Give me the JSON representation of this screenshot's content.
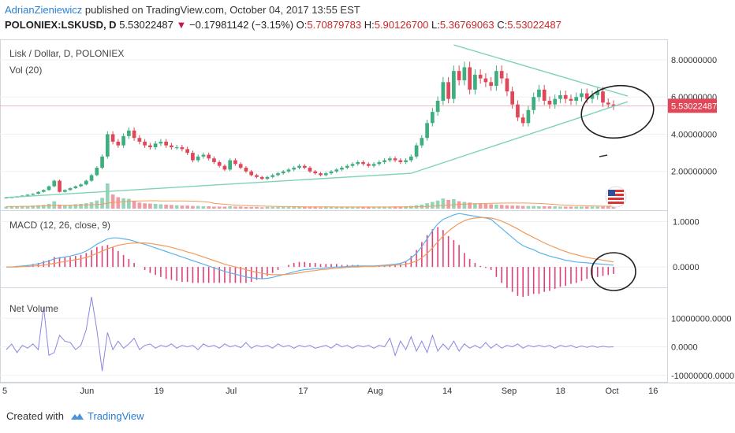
{
  "header": {
    "author": "AdrianZieniewicz",
    "published_text": " published on TradingView.com, October 04, 2017 13:55 EST"
  },
  "quote": {
    "symbol": "POLONIEX:LSKUSD, D",
    "last": "5.53022487",
    "arrow": "▼",
    "change": "−0.17981142 (−3.15%)",
    "o_label": "O:",
    "o": "5.70879783",
    "h_label": "H:",
    "h": "5.90126700",
    "l_label": "L:",
    "l": "5.36769063",
    "c_label": "C:",
    "c": "5.53022487"
  },
  "panes": {
    "price_title": "Lisk / Dollar, D, POLONIEX",
    "vol_title": "Vol (20)",
    "macd_title": "MACD (12, 26, close, 9)",
    "netvol_title": "Net Volume"
  },
  "footer": {
    "created_with": "Created with",
    "brand": "TradingView"
  },
  "colors": {
    "up": "#3fae7f",
    "down": "#e0485a",
    "macd_line": "#5ab4ea",
    "signal_line": "#f29a5a",
    "histogram": "#e0407a",
    "net_volume": "#8a86e0",
    "trendline": "#7fd3b5",
    "price_label_bg": "#e0485a"
  },
  "chart_data": [
    {
      "type": "candlestick",
      "name": "Lisk / Dollar, D, POLONIEX",
      "price_axis_ticks": [
        "8.00000000",
        "6.00000000",
        "4.00000000",
        "2.00000000"
      ],
      "y_ticks": [
        8,
        6,
        4,
        2
      ],
      "ylim": [
        0,
        9.1
      ],
      "last_price_label": "5.53022487",
      "last_price": 5.53,
      "x_ticks": [
        "5",
        "Jun",
        "19",
        "Jul",
        "17",
        "Aug",
        "14",
        "Sep",
        "18",
        "Oct",
        "16"
      ],
      "close": [
        0.6,
        0.62,
        0.65,
        0.7,
        0.75,
        0.8,
        0.9,
        1.0,
        1.2,
        1.5,
        0.9,
        1.0,
        1.1,
        1.2,
        1.3,
        1.5,
        1.8,
        2.2,
        2.8,
        4.0,
        3.6,
        3.4,
        3.9,
        4.2,
        3.8,
        3.6,
        3.4,
        3.3,
        3.5,
        3.6,
        3.4,
        3.3,
        3.3,
        3.2,
        3.0,
        2.6,
        2.8,
        2.9,
        2.7,
        2.5,
        2.3,
        2.1,
        2.6,
        2.4,
        2.2,
        2.0,
        1.8,
        1.7,
        1.6,
        1.7,
        1.8,
        1.9,
        2.0,
        2.1,
        2.2,
        2.3,
        2.2,
        2.0,
        1.9,
        1.8,
        1.9,
        2.0,
        2.1,
        2.2,
        2.3,
        2.4,
        2.5,
        2.4,
        2.3,
        2.4,
        2.5,
        2.6,
        2.7,
        2.6,
        2.5,
        2.6,
        2.8,
        3.4,
        3.8,
        4.6,
        5.2,
        5.8,
        6.8,
        5.9,
        7.4,
        6.9,
        7.6,
        6.4,
        7.2,
        7.0,
        6.8,
        6.6,
        7.4,
        7.0,
        6.3,
        5.6,
        4.9,
        4.6,
        5.3,
        6.0,
        6.4,
        5.8,
        5.6,
        5.9,
        6.1,
        5.9,
        5.8,
        6.0,
        6.2,
        5.9,
        6.1,
        6.3,
        5.7,
        5.6,
        5.53
      ],
      "volume": [
        0.6,
        0.7,
        0.6,
        0.8,
        0.7,
        0.9,
        1,
        1.1,
        1.4,
        2.2,
        1.2,
        1,
        1.1,
        1.3,
        1.4,
        1.6,
        1.9,
        2.4,
        3.2,
        7.5,
        4.2,
        3.4,
        3.1,
        2.9,
        2.2,
        1.8,
        1.6,
        1.5,
        1.4,
        1.3,
        1.2,
        1.1,
        1,
        0.9,
        0.9,
        0.8,
        0.8,
        0.7,
        0.7,
        0.6,
        0.6,
        0.6,
        0.7,
        0.6,
        0.6,
        0.5,
        0.5,
        0.5,
        0.4,
        0.5,
        0.5,
        0.5,
        0.5,
        0.5,
        0.5,
        0.5,
        0.5,
        0.5,
        0.5,
        0.4,
        0.5,
        0.5,
        0.5,
        0.5,
        0.5,
        0.5,
        0.5,
        0.5,
        0.5,
        0.5,
        0.5,
        0.5,
        0.6,
        0.6,
        0.6,
        0.7,
        0.8,
        1.0,
        1.2,
        1.6,
        2.0,
        2.4,
        3.0,
        2.6,
        2.8,
        2.2,
        2.0,
        1.8,
        1.6,
        1.5,
        1.4,
        1.3,
        1.2,
        1.1,
        1.0,
        0.9,
        0.9,
        0.8,
        0.8,
        0.8,
        0.7,
        0.7,
        0.7,
        0.7,
        0.6,
        0.6,
        0.6,
        0.6,
        0.6,
        0.6,
        0.6,
        0.6,
        0.6,
        0.6,
        0.6
      ]
    },
    {
      "type": "line",
      "name": "MACD (12, 26, close, 9)",
      "y_ticks": [
        1.0,
        0.0
      ],
      "y_tick_labels": [
        "1.0000",
        "0.0000"
      ],
      "ylim": [
        -0.45,
        1.2
      ],
      "macd": [
        0.0,
        0.0,
        0.01,
        0.02,
        0.03,
        0.05,
        0.07,
        0.1,
        0.13,
        0.18,
        0.2,
        0.22,
        0.24,
        0.27,
        0.3,
        0.35,
        0.42,
        0.5,
        0.56,
        0.62,
        0.64,
        0.64,
        0.62,
        0.6,
        0.57,
        0.53,
        0.5,
        0.46,
        0.42,
        0.38,
        0.34,
        0.3,
        0.26,
        0.22,
        0.18,
        0.14,
        0.1,
        0.06,
        0.02,
        -0.02,
        -0.06,
        -0.1,
        -0.13,
        -0.16,
        -0.19,
        -0.22,
        -0.24,
        -0.25,
        -0.26,
        -0.25,
        -0.23,
        -0.2,
        -0.17,
        -0.14,
        -0.11,
        -0.08,
        -0.06,
        -0.05,
        -0.04,
        -0.03,
        -0.02,
        -0.01,
        0.0,
        0.0,
        0.01,
        0.02,
        0.02,
        0.02,
        0.02,
        0.02,
        0.03,
        0.04,
        0.05,
        0.06,
        0.08,
        0.12,
        0.2,
        0.3,
        0.45,
        0.62,
        0.8,
        0.95,
        1.05,
        1.1,
        1.15,
        1.18,
        1.16,
        1.14,
        1.12,
        1.1,
        1.08,
        1.05,
        0.95,
        0.85,
        0.75,
        0.65,
        0.55,
        0.47,
        0.42,
        0.38,
        0.32,
        0.28,
        0.24,
        0.21,
        0.18,
        0.15,
        0.13,
        0.11,
        0.1,
        0.09,
        0.08,
        0.07,
        0.06,
        0.05,
        0.04
      ],
      "signal": [
        0.0,
        0.0,
        0.0,
        0.01,
        0.01,
        0.02,
        0.03,
        0.04,
        0.06,
        0.08,
        0.1,
        0.12,
        0.14,
        0.16,
        0.18,
        0.21,
        0.25,
        0.3,
        0.35,
        0.4,
        0.44,
        0.48,
        0.5,
        0.52,
        0.53,
        0.53,
        0.53,
        0.52,
        0.5,
        0.48,
        0.46,
        0.43,
        0.4,
        0.37,
        0.33,
        0.3,
        0.26,
        0.22,
        0.18,
        0.14,
        0.1,
        0.06,
        0.03,
        0.0,
        -0.03,
        -0.06,
        -0.09,
        -0.12,
        -0.14,
        -0.16,
        -0.17,
        -0.17,
        -0.17,
        -0.16,
        -0.15,
        -0.13,
        -0.11,
        -0.09,
        -0.08,
        -0.06,
        -0.05,
        -0.04,
        -0.03,
        -0.02,
        -0.01,
        0.0,
        0.0,
        0.01,
        0.01,
        0.01,
        0.02,
        0.02,
        0.03,
        0.04,
        0.05,
        0.06,
        0.09,
        0.13,
        0.2,
        0.3,
        0.42,
        0.55,
        0.68,
        0.79,
        0.88,
        0.96,
        1.02,
        1.06,
        1.08,
        1.09,
        1.09,
        1.08,
        1.05,
        1.01,
        0.96,
        0.9,
        0.84,
        0.77,
        0.71,
        0.65,
        0.59,
        0.53,
        0.48,
        0.43,
        0.38,
        0.34,
        0.3,
        0.27,
        0.24,
        0.21,
        0.19,
        0.17,
        0.15,
        0.13,
        0.11
      ]
    },
    {
      "type": "line",
      "name": "Net Volume",
      "y_ticks": [
        10000000,
        0,
        -10000000
      ],
      "y_tick_labels": [
        "10000000.0000",
        "0.0000",
        "-10000000.0000"
      ],
      "ylim": [
        -12000000,
        20000000
      ],
      "values": [
        -1000000,
        1000000,
        -2000000,
        500000,
        -500000,
        1000000,
        -1000000,
        14000000,
        -3000000,
        -2000000,
        4000000,
        2000000,
        1500000,
        -1000000,
        500000,
        6000000,
        17500000,
        6000000,
        -8500000,
        5000000,
        -1000000,
        2000000,
        -500000,
        1000000,
        3000000,
        -1000000,
        500000,
        1000000,
        -500000,
        500000,
        0,
        1000000,
        -500000,
        500000,
        0,
        500000,
        -1000000,
        1000000,
        0,
        500000,
        -500000,
        1000000,
        0,
        500000,
        -300000,
        1500000,
        -500000,
        500000,
        0,
        500000,
        -500000,
        1000000,
        0,
        500000,
        -500000,
        500000,
        0,
        500000,
        -500000,
        0,
        500000,
        -500000,
        1000000,
        0,
        500000,
        -500000,
        500000,
        0,
        500000,
        -500000,
        500000,
        0,
        3000000,
        -3000000,
        2000000,
        -1000000,
        3500000,
        -1500000,
        2000000,
        -2000000,
        4000000,
        -1500000,
        1000000,
        -1000000,
        2000000,
        -1500000,
        1000000,
        -500000,
        500000,
        -500000,
        1500000,
        -500000,
        1000000,
        -500000,
        500000,
        0,
        1000000,
        -500000,
        500000,
        0,
        500000,
        0,
        500000,
        -500000,
        500000,
        0,
        500000,
        -300000,
        300000,
        -200000,
        300000,
        -200000,
        200000,
        -100000,
        0
      ]
    }
  ]
}
